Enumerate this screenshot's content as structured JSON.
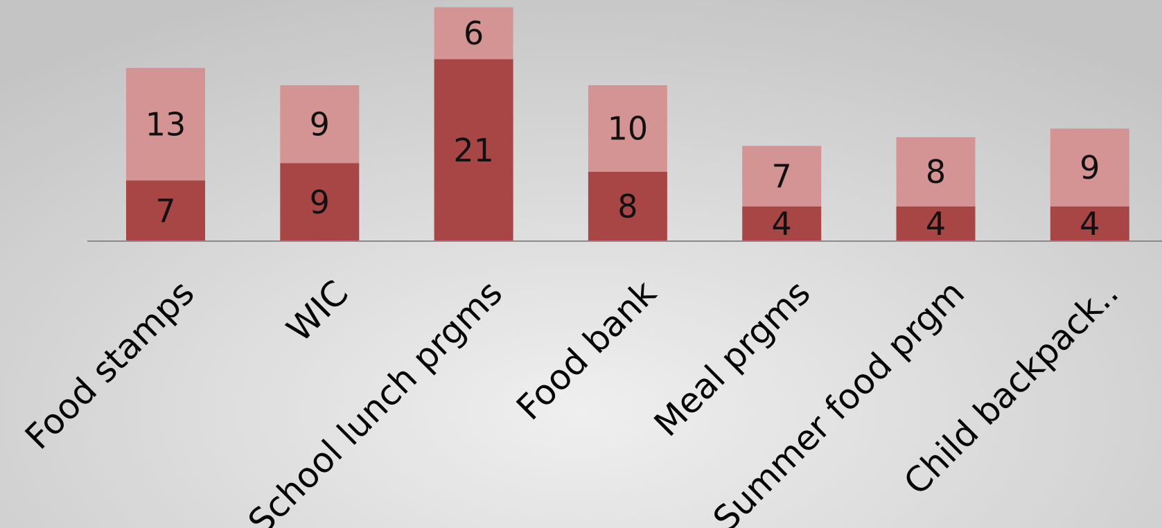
{
  "chart_data": {
    "type": "bar",
    "stacked": true,
    "categories": [
      "Food stamps",
      "WIC",
      "School lunch prgms",
      "Food bank",
      "Meal prgms",
      "Summer food prgm",
      "Child backpack.."
    ],
    "series": [
      {
        "values": [
          7,
          9,
          21,
          8,
          4,
          4,
          4
        ],
        "color": "#a84646"
      },
      {
        "values": [
          13,
          9,
          6,
          10,
          7,
          8,
          9
        ],
        "color": "#d49494"
      }
    ],
    "ylim": [
      0,
      27
    ],
    "grid": false,
    "legend": "none",
    "title": "",
    "xlabel": "",
    "ylabel": ""
  }
}
